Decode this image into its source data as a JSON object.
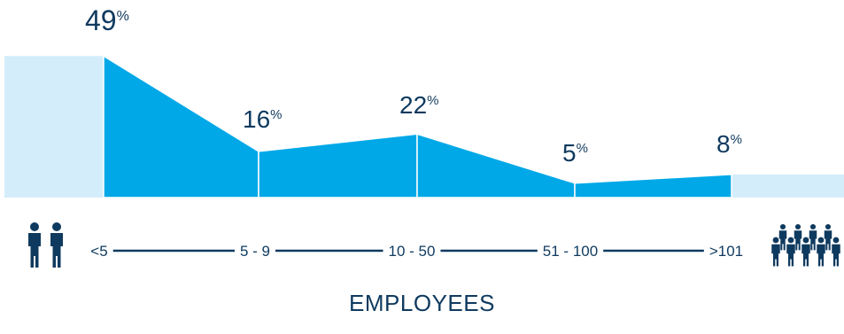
{
  "chart_data": {
    "type": "area",
    "categories": [
      "<5",
      "5 - 9",
      "10 - 50",
      "51 - 100",
      ">101"
    ],
    "values": [
      49,
      16,
      22,
      5,
      8
    ],
    "value_suffix": "%",
    "xlabel": "EMPLOYEES",
    "ylabel": "",
    "ylim": [
      0,
      50
    ],
    "grid": false,
    "colors": {
      "area": "#00a8e8",
      "area_light": "#d3eefa",
      "text": "#0f3a5f",
      "line": "#0f3a5f"
    },
    "icons": {
      "left": "two-people-icon",
      "right": "group-of-people-icon"
    }
  }
}
